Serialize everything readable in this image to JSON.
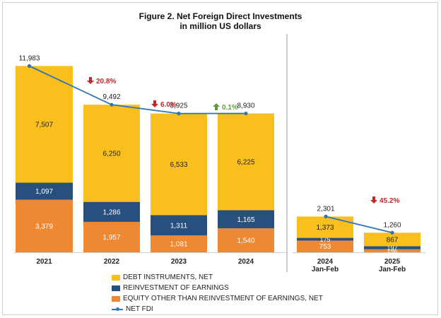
{
  "title_line1": "Figure 2. Net Foreign Direct Investments",
  "title_line2": "in million US dollars",
  "colors": {
    "debt": "#f9bf1c",
    "reinvest": "#27507e",
    "equity": "#ef8833",
    "net": "#2e75b6",
    "down": "#c0282a",
    "up": "#5a9e3a",
    "value_dark": "#222222",
    "value_light": "#ffffff"
  },
  "chart_data": {
    "type": "bar",
    "stacked": true,
    "categories": [
      "2021",
      "2022",
      "2023",
      "2024",
      "2024\nJan-Feb",
      "2025\nJan-Feb"
    ],
    "category_labels": [
      [
        "2021"
      ],
      [
        "2022"
      ],
      [
        "2023"
      ],
      [
        "2024"
      ],
      [
        "2024",
        "Jan-Feb"
      ],
      [
        "2025",
        "Jan-Feb"
      ]
    ],
    "series": [
      {
        "name": "EQUITY OTHER THAN REINVESTMENT OF EARNINGS, NET",
        "key": "equity",
        "values": [
          3379,
          1957,
          1081,
          1540,
          753,
          196
        ],
        "labels": [
          "3,379",
          "1,957",
          "1,081",
          "1,540",
          "753",
          "196"
        ]
      },
      {
        "name": "REINVESTMENT OF EARNINGS",
        "key": "reinvest",
        "values": [
          1097,
          1286,
          1311,
          1165,
          175,
          197
        ],
        "labels": [
          "1,097",
          "1,286",
          "1,311",
          "1,165",
          "175",
          "197"
        ]
      },
      {
        "name": "DEBT INSTRUMENTS, NET",
        "key": "debt",
        "values": [
          7507,
          6250,
          6533,
          6225,
          1373,
          867
        ],
        "labels": [
          "7,507",
          "6,250",
          "6,533",
          "6,225",
          "1,373",
          "867"
        ]
      }
    ],
    "net_fdi": {
      "name": "NET FDI",
      "values": [
        11983,
        9492,
        8925,
        8930,
        2301,
        1260
      ],
      "labels": [
        "11,983",
        "9,492",
        "8,925",
        "8,930",
        "2,301",
        "1,260"
      ]
    },
    "changes": [
      {
        "between": [
          0,
          1
        ],
        "text": "20.8%",
        "direction": "down"
      },
      {
        "between": [
          1,
          2
        ],
        "text": "6.0%",
        "direction": "down"
      },
      {
        "between": [
          2,
          3
        ],
        "text": "0.1%",
        "direction": "up"
      },
      {
        "between": [
          4,
          5
        ],
        "text": "45.2%",
        "direction": "down"
      }
    ],
    "legend_order": [
      "DEBT INSTRUMENTS, NET",
      "REINVESTMENT OF EARNINGS",
      "EQUITY OTHER THAN REINVESTMENT OF EARNINGS, NET",
      "NET FDI"
    ],
    "legend_placement": "bottom",
    "ylim": [
      0,
      12000
    ],
    "grid": false,
    "divider_after_category": 3
  }
}
